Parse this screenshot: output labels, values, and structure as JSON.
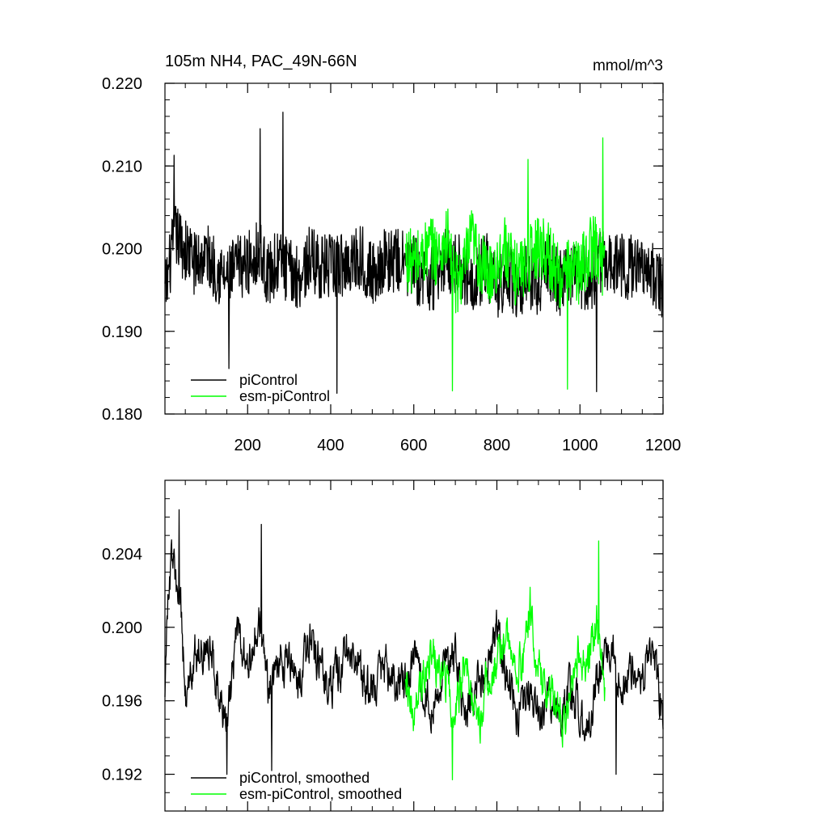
{
  "chart_data": [
    {
      "type": "line",
      "title": "105m NH4, PAC_49N-66N",
      "units": "mmol/m^3",
      "xlim": [
        1,
        1200
      ],
      "ylim": [
        0.18,
        0.22
      ],
      "x_ticks": [
        200,
        400,
        600,
        800,
        1000,
        1200
      ],
      "x_tick_labels": [
        "200",
        "400",
        "600",
        "800",
        "1000",
        "1200"
      ],
      "y_ticks": [
        0.18,
        0.19,
        0.2,
        0.21,
        0.22
      ],
      "y_tick_labels": [
        "0.180",
        "0.190",
        "0.200",
        "0.210",
        "0.220"
      ],
      "legend_position": "bottom-left",
      "series": [
        {
          "name": "piControl",
          "color": "#000000",
          "x_range": [
            1,
            1200
          ],
          "points": [
            [
              1,
              0.1945
            ],
            [
              25,
              0.2018
            ],
            [
              50,
              0.1998
            ],
            [
              75,
              0.1982
            ],
            [
              100,
              0.1993
            ],
            [
              125,
              0.1975
            ],
            [
              150,
              0.1962
            ],
            [
              175,
              0.1978
            ],
            [
              200,
              0.1981
            ],
            [
              225,
              0.1999
            ],
            [
              250,
              0.1968
            ],
            [
              275,
              0.1985
            ],
            [
              300,
              0.1972
            ],
            [
              325,
              0.1966
            ],
            [
              350,
              0.1988
            ],
            [
              375,
              0.1979
            ],
            [
              400,
              0.1977
            ],
            [
              425,
              0.198
            ],
            [
              450,
              0.1987
            ],
            [
              475,
              0.1991
            ],
            [
              500,
              0.1967
            ],
            [
              525,
              0.1985
            ],
            [
              550,
              0.1986
            ],
            [
              575,
              0.1982
            ],
            [
              600,
              0.1976
            ],
            [
              625,
              0.1963
            ],
            [
              650,
              0.1966
            ],
            [
              675,
              0.1986
            ],
            [
              700,
              0.1982
            ],
            [
              725,
              0.1968
            ],
            [
              750,
              0.1964
            ],
            [
              775,
              0.198
            ],
            [
              800,
              0.1951
            ],
            [
              825,
              0.1973
            ],
            [
              850,
              0.195
            ],
            [
              875,
              0.1969
            ],
            [
              900,
              0.1958
            ],
            [
              925,
              0.1978
            ],
            [
              950,
              0.1958
            ],
            [
              975,
              0.1972
            ],
            [
              1000,
              0.1968
            ],
            [
              1025,
              0.1961
            ],
            [
              1050,
              0.1983
            ],
            [
              1075,
              0.1989
            ],
            [
              1100,
              0.1978
            ],
            [
              1125,
              0.1977
            ],
            [
              1150,
              0.1987
            ],
            [
              1175,
              0.1968
            ],
            [
              1200,
              0.195
            ]
          ],
          "noise_amplitude": 0.004,
          "extremes": [
            [
              23,
              0.2113
            ],
            [
              155,
              0.1855
            ],
            [
              230,
              0.2145
            ],
            [
              285,
              0.2165
            ],
            [
              415,
              0.1825
            ],
            [
              1040,
              0.1827
            ]
          ]
        },
        {
          "name": "esm-piControl",
          "color": "#00ff00",
          "x_range": [
            580,
            1060
          ],
          "points": [
            [
              580,
              0.199
            ],
            [
              600,
              0.1982
            ],
            [
              620,
              0.1991
            ],
            [
              640,
              0.2002
            ],
            [
              660,
              0.1991
            ],
            [
              680,
              0.2015
            ],
            [
              700,
              0.1955
            ],
            [
              720,
              0.1974
            ],
            [
              740,
              0.2012
            ],
            [
              760,
              0.1981
            ],
            [
              780,
              0.1967
            ],
            [
              800,
              0.1982
            ],
            [
              820,
              0.2001
            ],
            [
              840,
              0.197
            ],
            [
              860,
              0.1977
            ],
            [
              880,
              0.1989
            ],
            [
              900,
              0.2006
            ],
            [
              920,
              0.1998
            ],
            [
              940,
              0.1975
            ],
            [
              960,
              0.1961
            ],
            [
              980,
              0.1981
            ],
            [
              1000,
              0.1969
            ],
            [
              1020,
              0.1996
            ],
            [
              1040,
              0.2003
            ],
            [
              1060,
              0.1972
            ]
          ],
          "noise_amplitude": 0.004,
          "extremes": [
            [
              693,
              0.1828
            ],
            [
              875,
              0.2108
            ],
            [
              970,
              0.183
            ],
            [
              1055,
              0.2134
            ]
          ]
        }
      ]
    },
    {
      "type": "line",
      "xlim": [
        1,
        1200
      ],
      "ylim": [
        0.19,
        0.208
      ],
      "x_ticks": [
        200,
        400,
        600,
        800,
        1000,
        1200
      ],
      "y_ticks": [
        0.192,
        0.196,
        0.2,
        0.204
      ],
      "y_tick_labels": [
        "0.192",
        "0.196",
        "0.200",
        "0.204"
      ],
      "legend_position": "bottom-left",
      "series": [
        {
          "name": "piControl, smoothed",
          "color": "#000000",
          "x_range": [
            1,
            1200
          ],
          "points": [
            [
              1,
              0.1971
            ],
            [
              10,
              0.2025
            ],
            [
              20,
              0.2037
            ],
            [
              30,
              0.2018
            ],
            [
              40,
              0.2008
            ],
            [
              50,
              0.1962
            ],
            [
              75,
              0.1986
            ],
            [
              100,
              0.199
            ],
            [
              125,
              0.1975
            ],
            [
              150,
              0.1946
            ],
            [
              175,
              0.2001
            ],
            [
              200,
              0.1975
            ],
            [
              225,
              0.2005
            ],
            [
              250,
              0.1968
            ],
            [
              275,
              0.1985
            ],
            [
              300,
              0.1979
            ],
            [
              325,
              0.1966
            ],
            [
              350,
              0.1993
            ],
            [
              375,
              0.1981
            ],
            [
              400,
              0.1967
            ],
            [
              425,
              0.198
            ],
            [
              450,
              0.1993
            ],
            [
              475,
              0.1972
            ],
            [
              500,
              0.1968
            ],
            [
              525,
              0.198
            ],
            [
              550,
              0.1974
            ],
            [
              575,
              0.1968
            ],
            [
              600,
              0.1985
            ],
            [
              625,
              0.1962
            ],
            [
              650,
              0.1961
            ],
            [
              675,
              0.1983
            ],
            [
              700,
              0.1982
            ],
            [
              725,
              0.1952
            ],
            [
              750,
              0.1969
            ],
            [
              775,
              0.1975
            ],
            [
              800,
              0.1996
            ],
            [
              825,
              0.1972
            ],
            [
              850,
              0.1953
            ],
            [
              875,
              0.1968
            ],
            [
              900,
              0.1952
            ],
            [
              925,
              0.1966
            ],
            [
              950,
              0.1946
            ],
            [
              975,
              0.1966
            ],
            [
              1000,
              0.1957
            ],
            [
              1025,
              0.195
            ],
            [
              1050,
              0.1978
            ],
            [
              1075,
              0.1985
            ],
            [
              1100,
              0.1972
            ],
            [
              1125,
              0.1976
            ],
            [
              1150,
              0.1969
            ],
            [
              1175,
              0.1991
            ],
            [
              1200,
              0.195
            ]
          ],
          "noise_amplitude": 0.0022,
          "extremes": [
            [
              35,
              0.2064
            ],
            [
              150,
              0.192
            ],
            [
              233,
              0.2056
            ],
            [
              258,
              0.1922
            ],
            [
              1087,
              0.192
            ]
          ]
        },
        {
          "name": "esm-piControl, smoothed",
          "color": "#00ff00",
          "x_range": [
            580,
            1060
          ],
          "points": [
            [
              580,
              0.198
            ],
            [
              600,
              0.1946
            ],
            [
              620,
              0.1972
            ],
            [
              640,
              0.1988
            ],
            [
              660,
              0.1975
            ],
            [
              680,
              0.1967
            ],
            [
              700,
              0.1952
            ],
            [
              720,
              0.1981
            ],
            [
              740,
              0.1964
            ],
            [
              760,
              0.195
            ],
            [
              780,
              0.1975
            ],
            [
              800,
              0.198
            ],
            [
              820,
              0.1995
            ],
            [
              840,
              0.1985
            ],
            [
              860,
              0.1977
            ],
            [
              880,
              0.201
            ],
            [
              900,
              0.1976
            ],
            [
              920,
              0.1968
            ],
            [
              940,
              0.1961
            ],
            [
              960,
              0.1948
            ],
            [
              980,
              0.1978
            ],
            [
              1000,
              0.1987
            ],
            [
              1020,
              0.1975
            ],
            [
              1040,
              0.2008
            ],
            [
              1060,
              0.1958
            ]
          ],
          "noise_amplitude": 0.0022,
          "extremes": [
            [
              693,
              0.1917
            ],
            [
              1045,
              0.2047
            ]
          ]
        }
      ]
    }
  ]
}
